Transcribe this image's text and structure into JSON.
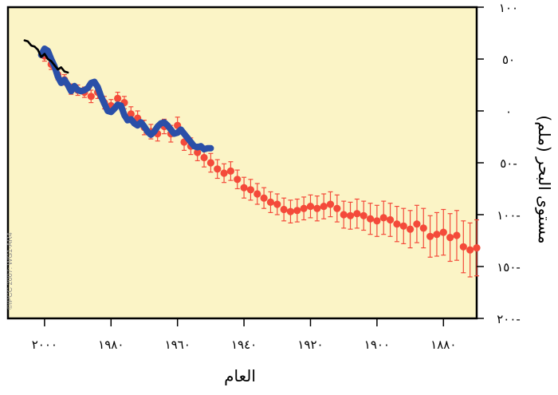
{
  "chart_data": {
    "type": "line",
    "title": "",
    "xlabel": "العام",
    "ylabel": "مستوى البحر (ملم)",
    "credit": "©IPCC 2007: WG1-AR4",
    "x_reversed": true,
    "xlim": [
      1870,
      2011
    ],
    "ylim": [
      100,
      -200
    ],
    "y_reversed": true,
    "xticks": [
      2000,
      1980,
      1960,
      1940,
      1920,
      1900,
      1880
    ],
    "xtick_labels": [
      "٢٠٠٠",
      "١٩٨٠",
      "١٩٦٠",
      "١٩٤٠",
      "١٩٢٠",
      "١٩٠٠",
      "١٨٨٠"
    ],
    "yticks": [
      100,
      50,
      0,
      -50,
      -100,
      -150,
      -200
    ],
    "ytick_labels": [
      "١٠٠",
      "٥٠",
      "٠",
      "٥٠-",
      "١٠٠-",
      "١٥٠-",
      "٢٠٠-"
    ],
    "grid": false,
    "background": "#fbf4c6",
    "series": [
      {
        "color": "#f44a3a",
        "style": "points-with-error-bars",
        "x": [
          2000,
          1998,
          1996,
          1994,
          1992,
          1990,
          1988,
          1986,
          1984,
          1982,
          1980,
          1978,
          1976,
          1974,
          1972,
          1970,
          1968,
          1966,
          1964,
          1962,
          1960,
          1958,
          1956,
          1954,
          1952,
          1950,
          1948,
          1946,
          1944,
          1942,
          1940,
          1938,
          1936,
          1934,
          1932,
          1930,
          1928,
          1926,
          1924,
          1922,
          1920,
          1918,
          1916,
          1914,
          1912,
          1910,
          1908,
          1906,
          1904,
          1902,
          1900,
          1898,
          1896,
          1894,
          1892,
          1890,
          1888,
          1886,
          1884,
          1882,
          1880,
          1878,
          1876,
          1874,
          1872,
          1870
        ],
        "y": [
          53,
          45,
          35,
          30,
          21,
          20,
          18,
          14,
          18,
          8,
          5,
          12,
          8,
          -3,
          -7,
          -16,
          -20,
          -22,
          -15,
          -22,
          -14,
          -30,
          -34,
          -40,
          -45,
          -50,
          -56,
          -60,
          -58,
          -66,
          -74,
          -76,
          -80,
          -84,
          -88,
          -90,
          -95,
          -97,
          -96,
          -94,
          -92,
          -94,
          -92,
          -90,
          -94,
          -100,
          -101,
          -99,
          -101,
          -104,
          -106,
          -103,
          -105,
          -109,
          -111,
          -114,
          -109,
          -113,
          -121,
          -119,
          -117,
          -122,
          -120,
          -131,
          -134,
          -132
        ],
        "err": [
          5,
          5,
          5,
          5,
          5,
          5,
          5,
          6,
          6,
          6,
          6,
          6,
          6,
          7,
          7,
          7,
          7,
          7,
          7,
          8,
          8,
          8,
          8,
          8,
          9,
          9,
          9,
          9,
          9,
          9,
          10,
          10,
          10,
          10,
          10,
          10,
          11,
          11,
          11,
          11,
          11,
          12,
          12,
          12,
          13,
          13,
          13,
          14,
          14,
          15,
          15,
          16,
          16,
          17,
          17,
          18,
          18,
          19,
          20,
          21,
          22,
          23,
          24,
          25,
          26,
          27
        ]
      },
      {
        "color": "#2a4fa8",
        "style": "thick-line",
        "x": [
          2001,
          2000,
          1999,
          1998,
          1997,
          1996,
          1995,
          1994,
          1993,
          1992,
          1991,
          1990,
          1989,
          1988,
          1987,
          1986,
          1985,
          1984,
          1983,
          1982,
          1981,
          1980,
          1979,
          1978,
          1977,
          1976,
          1975,
          1974,
          1973,
          1972,
          1971,
          1970,
          1969,
          1968,
          1967,
          1966,
          1965,
          1964,
          1963,
          1962,
          1961,
          1960,
          1959,
          1958,
          1957,
          1956,
          1955,
          1954,
          1953,
          1952,
          1951,
          1950
        ],
        "y": [
          54,
          60,
          58,
          50,
          43,
          33,
          27,
          30,
          25,
          19,
          24,
          20,
          19,
          20,
          22,
          27,
          28,
          23,
          14,
          7,
          0,
          -1,
          2,
          6,
          5,
          -4,
          -9,
          -8,
          -12,
          -14,
          -11,
          -15,
          -20,
          -23,
          -20,
          -15,
          -12,
          -11,
          -14,
          -18,
          -22,
          -21,
          -18,
          -22,
          -26,
          -30,
          -34,
          -35,
          -34,
          -37,
          -36,
          -36
        ]
      },
      {
        "color": "#000000",
        "style": "line",
        "x": [
          2006,
          2005,
          2004,
          2003,
          2002,
          2001,
          2000,
          1999,
          1998,
          1997,
          1996,
          1995,
          1994,
          1993
        ],
        "y": [
          68,
          67,
          63,
          62,
          59,
          52,
          55,
          50,
          48,
          44,
          40,
          42,
          38,
          37
        ]
      }
    ]
  }
}
